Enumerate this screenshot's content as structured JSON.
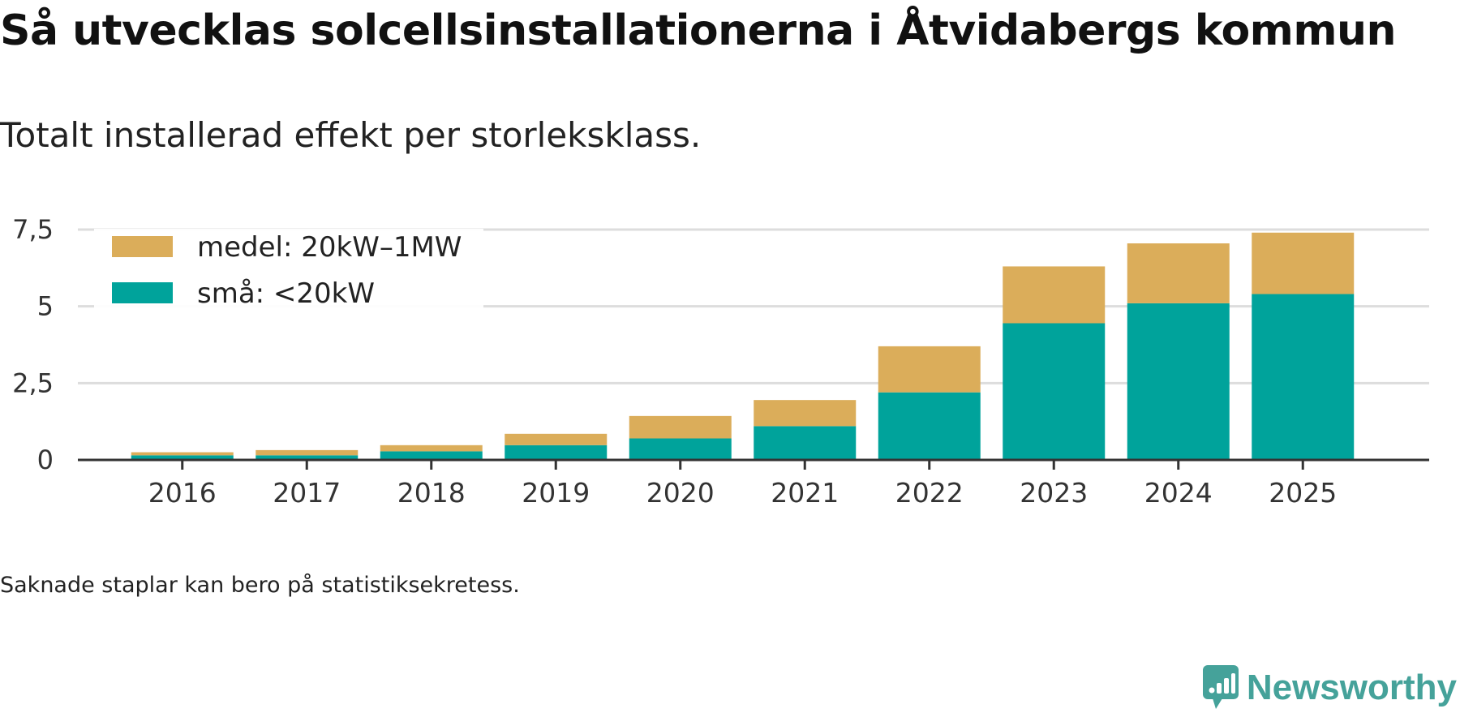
{
  "header": {
    "title": "Så utvecklas solcellsinstallationerna i Åtvidabergs kommun",
    "subtitle": "Totalt installerad effekt per storleksklass."
  },
  "footer": {
    "note": "Saknade staplar kan bero på statistiksekretess.",
    "brand": "Newsworthy"
  },
  "colors": {
    "small": "#00a39b",
    "medium": "#dbad5a",
    "grid": "#dddddd",
    "axis": "#333333",
    "brand": "#45a29a"
  },
  "chart_data": {
    "type": "bar",
    "stacked": true,
    "categories": [
      "2016",
      "2017",
      "2018",
      "2019",
      "2020",
      "2021",
      "2022",
      "2023",
      "2024",
      "2025"
    ],
    "series": [
      {
        "name": "små: <20kW",
        "values": [
          0.15,
          0.15,
          0.28,
          0.48,
          0.7,
          1.1,
          2.2,
          4.45,
          5.1,
          5.4
        ]
      },
      {
        "name": "medel: 20kW–1MW",
        "values": [
          0.1,
          0.17,
          0.2,
          0.37,
          0.73,
          0.85,
          1.5,
          1.85,
          1.95,
          2.0
        ]
      }
    ],
    "legend": [
      "medel: 20kW–1MW",
      "små: <20kW"
    ],
    "ylim": [
      0,
      7.5
    ],
    "yticks": [
      "0",
      "2,5",
      "5",
      "7,5"
    ],
    "ytick_values": [
      0,
      2.5,
      5,
      7.5
    ],
    "xlabel": "",
    "ylabel": "",
    "grid": true,
    "legend_position": "top-left"
  }
}
